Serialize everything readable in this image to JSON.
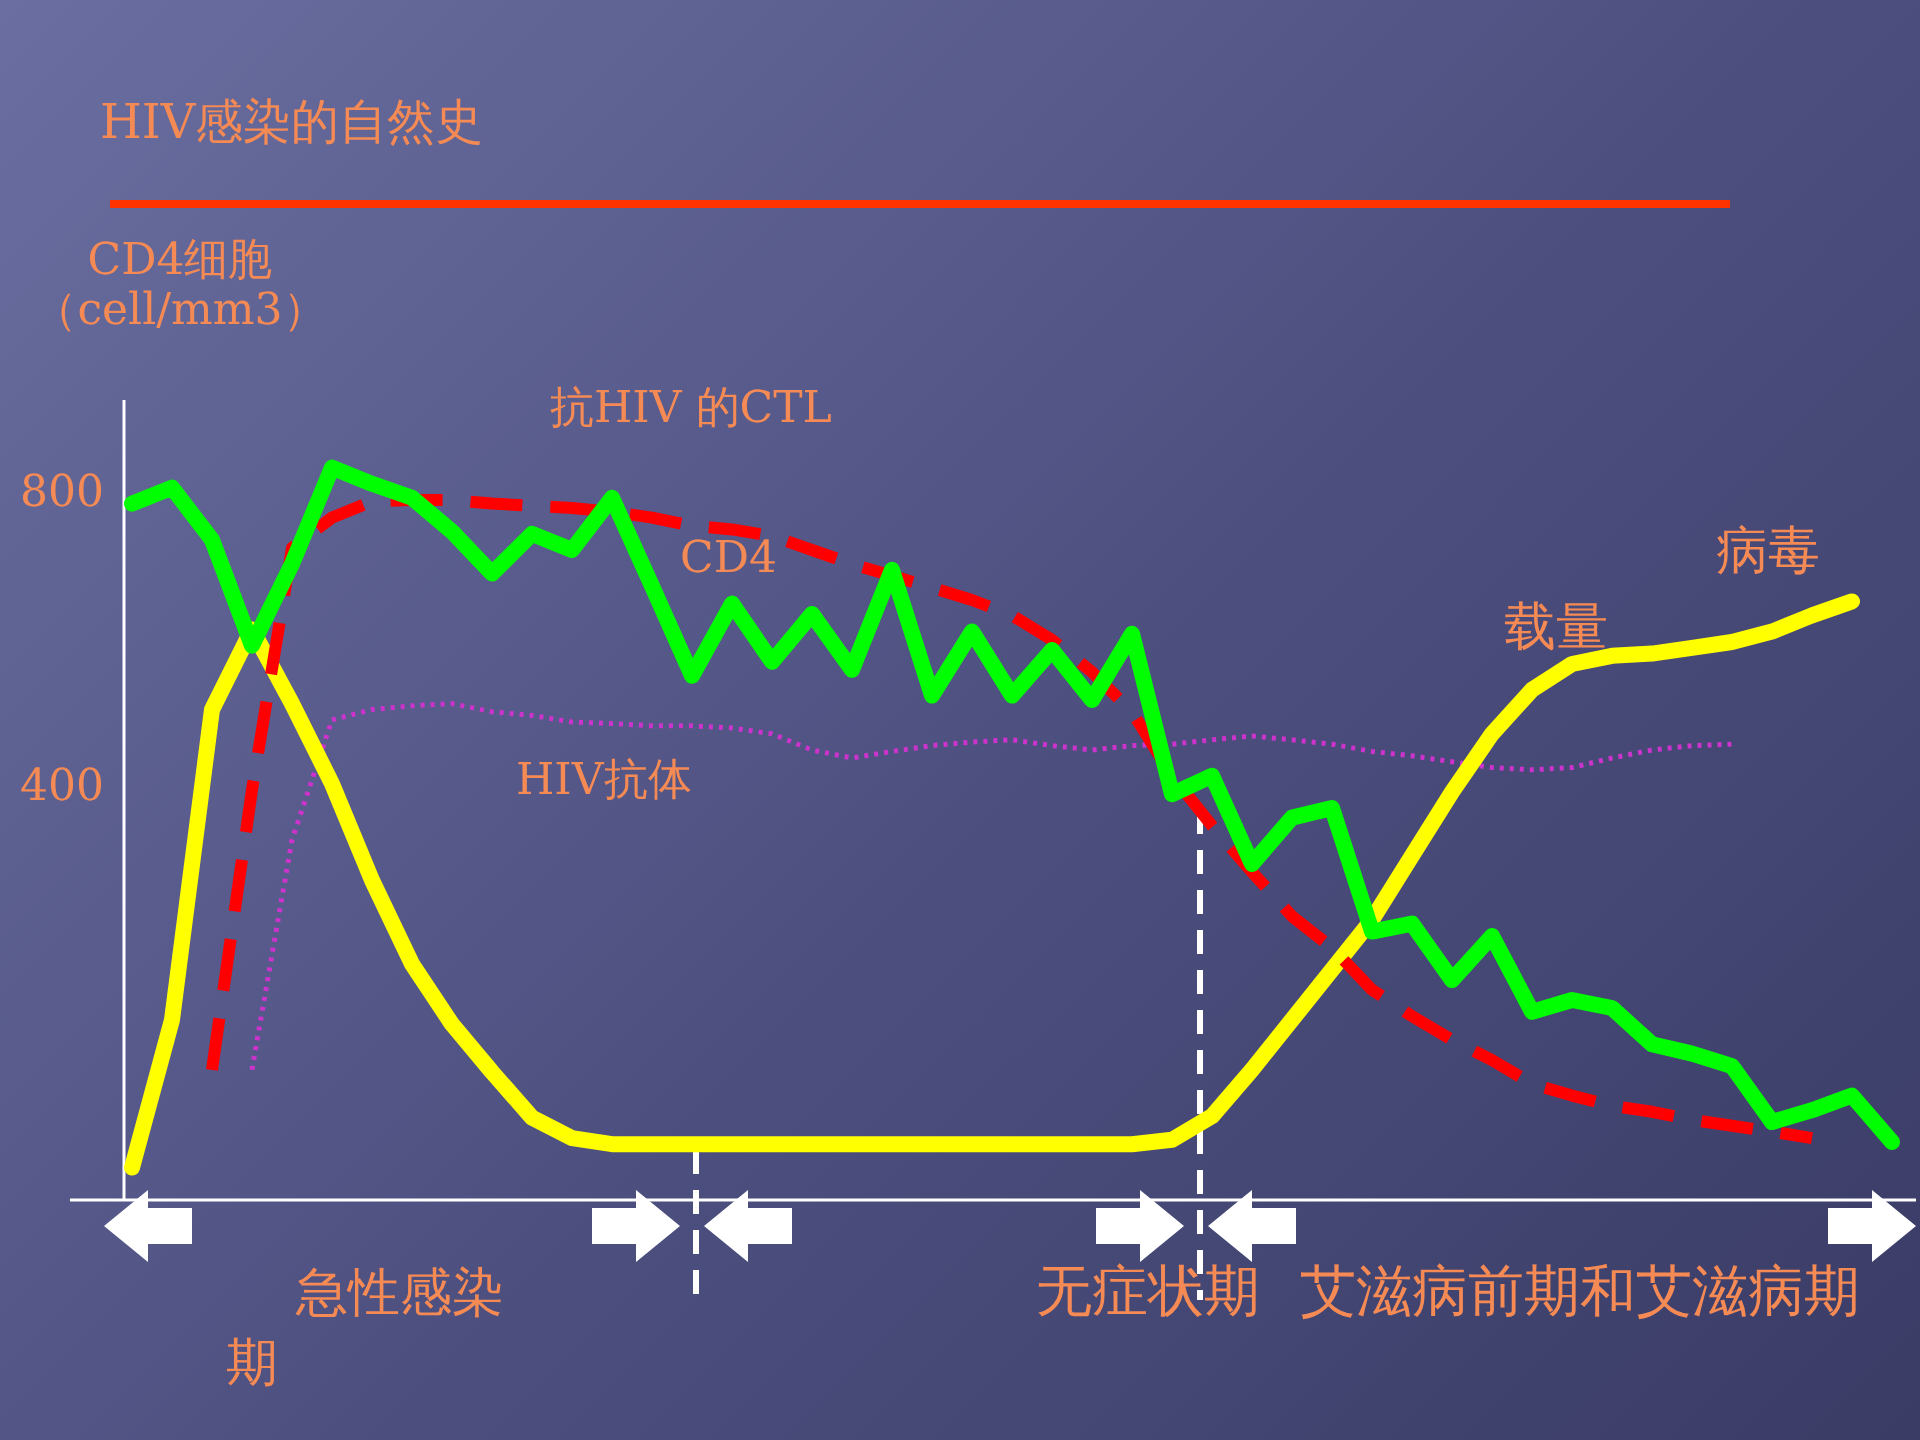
{
  "chart_data": {
    "type": "line",
    "title": "HIV感染的自然史",
    "ylabel": "CD4细胞（cell/mm3）",
    "categories": [
      null,
      null,
      null,
      null,
      null,
      null,
      null,
      null,
      null,
      null,
      null,
      null,
      null,
      null,
      null,
      null,
      null,
      null,
      null,
      null,
      null,
      null,
      null,
      null,
      null,
      null,
      null,
      null,
      null,
      null,
      null,
      null,
      null,
      null,
      null,
      null,
      null,
      null,
      null,
      null,
      null,
      null,
      null,
      null,
      null
    ],
    "ylim": [
      -166,
      922
    ],
    "yticks": [
      400,
      800
    ],
    "tick_labels": "y",
    "grid": false,
    "series": [
      {
        "color": "#cc33cc",
        "line_style": "dotted",
        "values": [
          null,
          null,
          null,
          11,
          324,
          487,
          501,
          506,
          509,
          498,
          493,
          484,
          482,
          479,
          479,
          476,
          468,
          446,
          435,
          444,
          452,
          457,
          460,
          452,
          446,
          452,
          454,
          460,
          465,
          460,
          454,
          444,
          438,
          430,
          422,
          419,
          422,
          435,
          446,
          452,
          454,
          null,
          null,
          null,
          null
        ]
      },
      {
        "color": "#ffff00",
        "line_style": "solid",
        "values": [
          -122,
          79,
          501,
          610,
          509,
          400,
          269,
          155,
          73,
          8,
          -54,
          -82,
          -90,
          -90,
          -90,
          -90,
          -90,
          -90,
          -90,
          -90,
          -90,
          -90,
          -90,
          -90,
          -90,
          -90,
          -84,
          -52,
          11,
          79,
          147,
          215,
          302,
          389,
          468,
          528,
          563,
          574,
          577,
          585,
          593,
          607,
          629,
          648,
          null
        ]
      },
      {
        "color": "#ff0000",
        "line_style": "dashed",
        "values": [
          null,
          null,
          11,
          392,
          721,
          762,
          784,
          786,
          786,
          781,
          778,
          775,
          770,
          762,
          751,
          746,
          737,
          718,
          699,
          683,
          667,
          650,
          629,
          596,
          552,
          498,
          411,
          343,
          280,
          220,
          177,
          120,
          84,
          52,
          24,
          -8,
          -24,
          -38,
          -46,
          -57,
          -65,
          -73,
          -82,
          null,
          null
        ]
      },
      {
        "color": "#00ff00",
        "line_style": "solid",
        "values": [
          781,
          803,
          732,
          588,
          699,
          830,
          808,
          789,
          743,
          686,
          740,
          718,
          789,
          669,
          547,
          645,
          566,
          631,
          555,
          691,
          520,
          607,
          520,
          582,
          514,
          604,
          386,
          411,
          291,
          354,
          367,
          199,
          210,
          133,
          193,
          90,
          106,
          95,
          46,
          33,
          16,
          -60,
          -44,
          -24,
          -87
        ]
      }
    ],
    "annotations": [
      "抗HIV 的CTL",
      "CD4",
      "HIV抗体",
      "病毒",
      "载量",
      "急性感染期",
      "无症状期",
      "艾滋病前期和艾滋病期"
    ]
  }
}
